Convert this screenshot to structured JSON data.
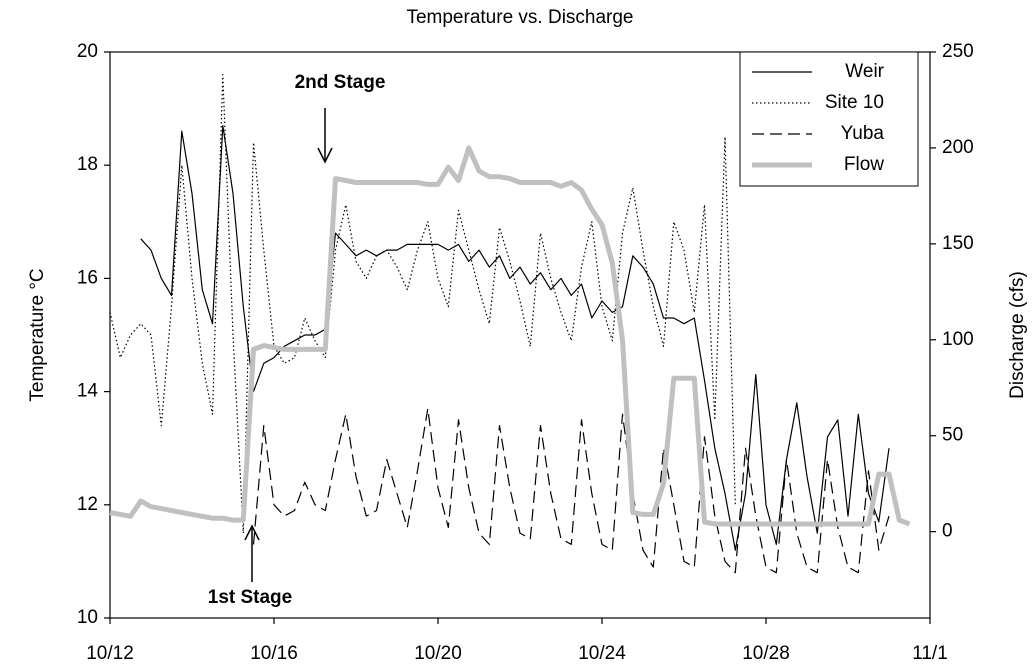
{
  "chart_data": {
    "type": "line",
    "title": "Temperature vs. Discharge",
    "y_label": "Temperature °C",
    "y2_label": "Discharge (cfs)",
    "annotations": [
      "2nd Stage",
      "1st Stage"
    ],
    "xlim": [
      0,
      20
    ],
    "xticks": [
      {
        "value": 0,
        "label": "10/12"
      },
      {
        "value": 4,
        "label": "10/16"
      },
      {
        "value": 8,
        "label": "10/20"
      },
      {
        "value": 12,
        "label": "10/24"
      },
      {
        "value": 16,
        "label": "10/28"
      },
      {
        "value": 20,
        "label": "11/1"
      }
    ],
    "ylim": [
      10,
      20
    ],
    "yticks": [
      10,
      12,
      14,
      16,
      18,
      20
    ],
    "y2lim": [
      -45,
      250
    ],
    "y2ticks": [
      0,
      50,
      100,
      150,
      200,
      250
    ],
    "legend": "top-right",
    "grid": false,
    "x": [
      0,
      0.25,
      0.5,
      0.75,
      1,
      1.25,
      1.5,
      1.75,
      2,
      2.25,
      2.5,
      2.75,
      3,
      3.25,
      3.5,
      3.75,
      4,
      4.25,
      4.5,
      4.75,
      5,
      5.25,
      5.5,
      5.75,
      6,
      6.25,
      6.5,
      6.75,
      7,
      7.25,
      7.5,
      7.75,
      8,
      8.25,
      8.5,
      8.75,
      9,
      9.25,
      9.5,
      9.75,
      10,
      10.25,
      10.5,
      10.75,
      11,
      11.25,
      11.5,
      11.75,
      12,
      12.25,
      12.5,
      12.75,
      13,
      13.25,
      13.5,
      13.75,
      14,
      14.25,
      14.5,
      14.75,
      15,
      15.25,
      15.5,
      15.75,
      16,
      16.25,
      16.5,
      16.75,
      17,
      17.25,
      17.5,
      17.75,
      18,
      18.25,
      18.5,
      18.75,
      19,
      19.25,
      19.5
    ],
    "series": [
      {
        "name": "Weir",
        "color": "#000000",
        "style": "solid",
        "width": 1.2,
        "values": [
          null,
          null,
          null,
          16.7,
          16.5,
          16.0,
          15.7,
          18.6,
          17.5,
          15.8,
          15.2,
          18.7,
          17.5,
          15.5,
          14.0,
          14.5,
          14.6,
          14.8,
          14.9,
          15.0,
          15.0,
          15.1,
          16.8,
          16.6,
          16.4,
          16.5,
          16.4,
          16.5,
          16.5,
          16.6,
          16.6,
          16.6,
          16.6,
          16.5,
          16.6,
          16.3,
          16.5,
          16.2,
          16.4,
          16.0,
          16.2,
          15.9,
          16.1,
          15.8,
          16.0,
          15.7,
          15.9,
          15.3,
          15.6,
          15.4,
          15.5,
          16.4,
          16.2,
          15.9,
          15.3,
          15.3,
          15.2,
          15.3,
          14.2,
          13.0,
          12.2,
          11.2,
          12.2,
          14.3,
          12.0,
          11.3,
          12.8,
          13.8,
          12.5,
          11.5,
          13.2,
          13.5,
          11.8,
          13.6,
          12.2,
          11.7,
          13.0,
          null,
          null
        ]
      },
      {
        "name": "Site 10",
        "color": "#000000",
        "style": "dotted",
        "width": 1.2,
        "values": [
          15.4,
          14.6,
          15.0,
          15.2,
          15.0,
          13.4,
          15.5,
          18.0,
          16.0,
          14.5,
          13.6,
          19.6,
          15.0,
          11.5,
          18.4,
          16.5,
          14.8,
          14.5,
          14.6,
          15.3,
          14.9,
          14.6,
          16.5,
          17.3,
          16.3,
          16.0,
          16.4,
          16.5,
          16.2,
          15.8,
          16.5,
          17.0,
          16.0,
          15.5,
          17.2,
          16.5,
          15.8,
          15.2,
          16.9,
          16.3,
          15.6,
          14.8,
          16.8,
          16.0,
          15.4,
          14.9,
          16.2,
          17.0,
          15.5,
          14.9,
          16.8,
          17.6,
          16.5,
          15.5,
          14.8,
          17.0,
          16.5,
          15.4,
          17.3,
          13.5,
          18.5,
          12.0,
          null,
          null,
          null,
          null,
          null,
          null,
          null,
          null,
          null,
          null,
          null,
          null,
          null,
          null,
          null,
          null,
          null
        ]
      },
      {
        "name": "Yuba",
        "color": "#000000",
        "style": "dashed",
        "width": 1.2,
        "values": [
          null,
          null,
          null,
          null,
          null,
          null,
          null,
          null,
          null,
          null,
          null,
          null,
          null,
          null,
          11.3,
          13.4,
          12.0,
          11.8,
          11.9,
          12.4,
          12.0,
          11.9,
          12.8,
          13.6,
          12.5,
          11.8,
          11.9,
          12.8,
          12.2,
          11.6,
          12.6,
          13.7,
          12.3,
          11.6,
          13.5,
          12.3,
          11.5,
          11.3,
          13.4,
          12.3,
          11.5,
          11.4,
          13.4,
          12.2,
          11.4,
          11.3,
          13.5,
          12.2,
          11.3,
          11.2,
          13.6,
          12.2,
          11.2,
          10.9,
          13.0,
          12.0,
          11.0,
          10.9,
          13.2,
          11.8,
          11.0,
          10.8,
          13.0,
          11.8,
          10.9,
          10.8,
          12.8,
          11.5,
          10.9,
          10.8,
          12.8,
          11.6,
          10.9,
          10.8,
          12.6,
          11.2,
          11.8,
          null,
          null
        ]
      },
      {
        "name": "Flow",
        "color": "#c0c0c0",
        "style": "solid",
        "width": 5,
        "axis": "y2",
        "values": [
          10,
          9,
          8,
          16,
          13,
          12,
          11,
          10,
          9,
          8,
          7,
          7,
          6,
          6,
          95,
          97,
          96,
          95,
          95,
          95,
          95,
          95,
          184,
          183,
          182,
          182,
          182,
          182,
          182,
          182,
          182,
          181,
          181,
          190,
          183,
          200,
          188,
          185,
          185,
          184,
          182,
          182,
          182,
          182,
          180,
          182,
          178,
          168,
          160,
          140,
          100,
          10,
          9,
          9,
          25,
          80,
          80,
          80,
          5,
          4,
          4,
          4,
          4,
          4,
          4,
          4,
          4,
          4,
          4,
          4,
          4,
          4,
          4,
          4,
          4,
          30,
          30,
          6,
          4
        ]
      }
    ]
  }
}
